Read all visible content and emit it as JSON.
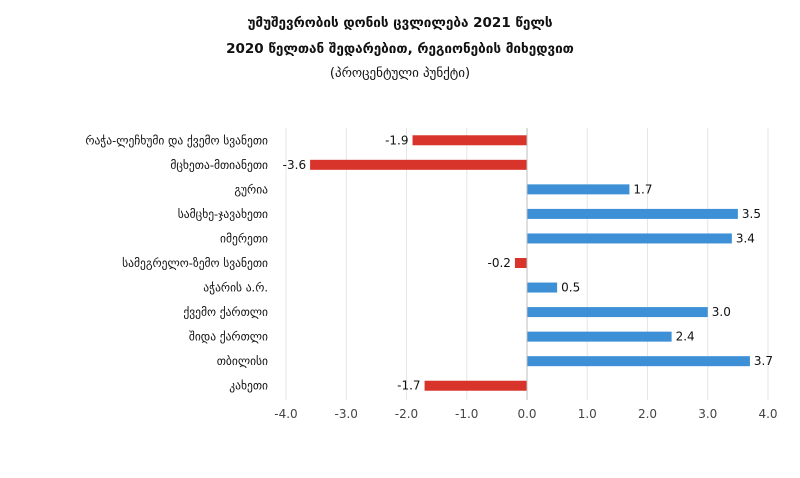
{
  "chart_data": {
    "type": "bar",
    "orientation": "horizontal",
    "title": "უმუშევრობის დონის ცვლილება 2021 წელს",
    "subtitle": "2020 წელთან შედარებით, რეგიონების მიხედვით",
    "note": "(პროცენტული პუნქტი)",
    "categories": [
      "რაჭა-ლეჩხუმი და ქვემო სვანეთი",
      "მცხეთა-მთიანეთი",
      "გურია",
      "სამცხე-ჯავახეთი",
      "იმერეთი",
      "სამეგრელო-ზემო სვანეთი",
      "აჭარის ა.რ.",
      "ქვემო ქართლი",
      "შიდა ქართლი",
      "თბილისი",
      "კახეთი"
    ],
    "values": [
      -1.9,
      -3.6,
      1.7,
      3.5,
      3.4,
      -0.2,
      0.5,
      3.0,
      2.4,
      3.7,
      -1.7
    ],
    "value_labels": [
      "-1.9",
      "-3.6",
      "1.7",
      "3.5",
      "3.4",
      "-0.2",
      "0.5",
      "3.0",
      "2.4",
      "3.7",
      "-1.7"
    ],
    "xlim": [
      -4.0,
      4.0
    ],
    "ticks": [
      -4.0,
      -3.0,
      -2.0,
      -1.0,
      0.0,
      1.0,
      2.0,
      3.0,
      4.0
    ],
    "tick_labels": [
      "-4.0",
      "-3.0",
      "-2.0",
      "-1.0",
      "0.0",
      "1.0",
      "2.0",
      "3.0",
      "4.0"
    ],
    "colors": {
      "positive": "#3d8fd6",
      "negative": "#d9342b",
      "grid": "#e6e6e6",
      "zero_axis": "#bdbdbd"
    },
    "grid": true,
    "legend": "none"
  }
}
